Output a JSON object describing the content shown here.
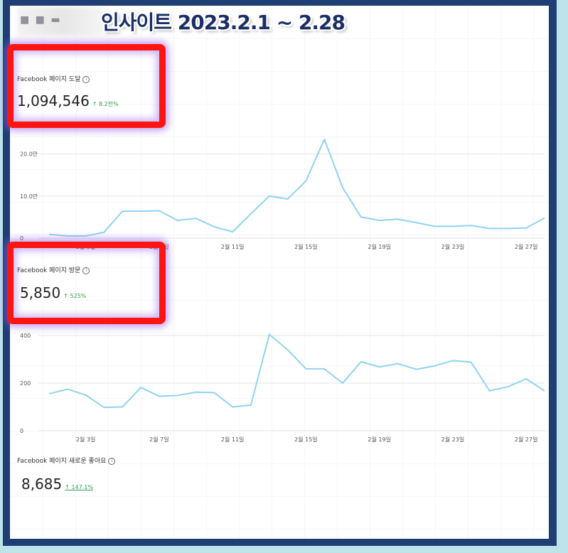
{
  "header": {
    "logo_text": "■ ■ ▬",
    "title": "인사이트 2023.2.1 ~ 2.28"
  },
  "metrics": [
    {
      "label": "Facebook 페이지 도달",
      "value": "1,094,546",
      "change": "↑ 8.2천%"
    },
    {
      "label": "Facebook 페이지 방문",
      "value": "5,850",
      "change": "↑ 525%"
    },
    {
      "label": "Facebook 페이지 새로운 좋아요",
      "value": "8,685",
      "change": "↑ 147.1%"
    }
  ],
  "info_glyph": "i",
  "colors": {
    "line": "#8fd3f0",
    "highlight": "#ff1414",
    "frame": "#1f3e73",
    "positive": "#2e9e4f"
  },
  "chart_data": [
    {
      "type": "line",
      "x": [
        1,
        2,
        3,
        4,
        5,
        6,
        7,
        8,
        9,
        10,
        11,
        12,
        13,
        14,
        15,
        16,
        17,
        18,
        19,
        20,
        21,
        22,
        23,
        24,
        25,
        26,
        27,
        28
      ],
      "x_ticks": [
        "2월 3일",
        "2월 7일",
        "2월 11일",
        "2월 15일",
        "2월 19일",
        "2월 23일",
        "2월 27일"
      ],
      "x_tick_values": [
        3,
        7,
        11,
        15,
        19,
        23,
        27
      ],
      "y_ticks": [
        "0",
        "10.0만",
        "20.0만"
      ],
      "y_tick_values": [
        0,
        100000,
        200000
      ],
      "ylim": [
        0,
        240000
      ],
      "values": [
        9000,
        5000,
        5000,
        14000,
        64000,
        64000,
        65000,
        42000,
        47000,
        27000,
        15000,
        58000,
        100000,
        93000,
        136000,
        235000,
        120000,
        50000,
        42000,
        45000,
        37000,
        28000,
        28000,
        30000,
        23000,
        23000,
        24000,
        48000
      ]
    },
    {
      "type": "line",
      "x": [
        1,
        2,
        3,
        4,
        5,
        6,
        7,
        8,
        9,
        10,
        11,
        12,
        13,
        14,
        15,
        16,
        17,
        18,
        19,
        20,
        21,
        22,
        23,
        24,
        25,
        26,
        27,
        28
      ],
      "x_ticks": [
        "2월 3일",
        "2월 7일",
        "2월 11일",
        "2월 15일",
        "2월 19일",
        "2월 23일",
        "2월 27일"
      ],
      "x_tick_values": [
        3,
        7,
        11,
        15,
        19,
        23,
        27
      ],
      "y_ticks": [
        "0",
        "200",
        "400"
      ],
      "y_tick_values": [
        0,
        200,
        400
      ],
      "ylim": [
        0,
        430
      ],
      "values": [
        155,
        175,
        150,
        98,
        100,
        182,
        145,
        148,
        162,
        160,
        100,
        108,
        405,
        340,
        260,
        260,
        200,
        290,
        268,
        282,
        258,
        272,
        295,
        288,
        168,
        185,
        218,
        168
      ]
    }
  ]
}
